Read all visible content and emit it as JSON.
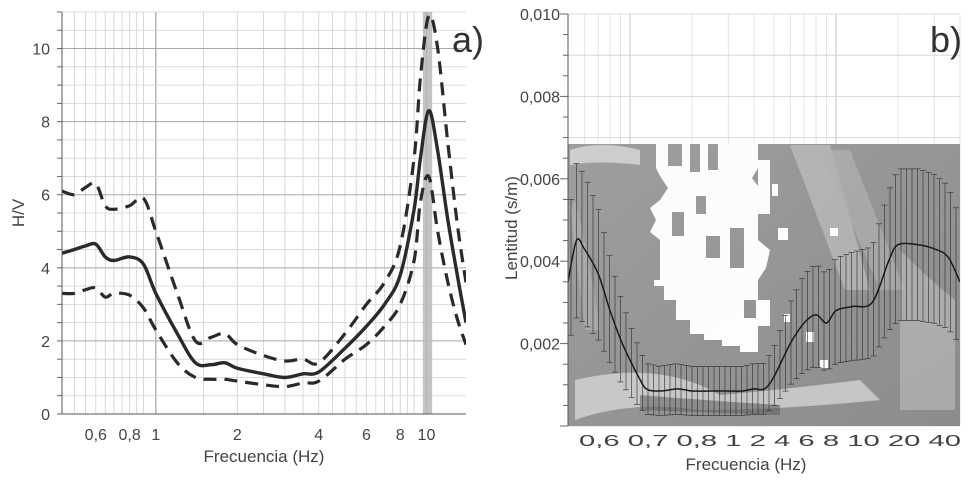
{
  "chart_data": [
    {
      "type": "line",
      "panel_label": "a)",
      "xlabel": "Frecuencia (Hz)",
      "ylabel": "H/V",
      "xscale": "log",
      "xlim": [
        0.45,
        14
      ],
      "ylim": [
        0,
        11
      ],
      "grid": true,
      "xticks": [
        {
          "v": 0.6,
          "label": "0,6"
        },
        {
          "v": 0.8,
          "label": "0,8"
        },
        {
          "v": 1,
          "label": "1"
        },
        {
          "v": 2,
          "label": "2"
        },
        {
          "v": 4,
          "label": "4"
        },
        {
          "v": 6,
          "label": "6"
        },
        {
          "v": 8,
          "label": "8"
        },
        {
          "v": 10,
          "label": "10"
        }
      ],
      "yticks": [
        {
          "v": 0,
          "label": "0"
        },
        {
          "v": 2,
          "label": "2"
        },
        {
          "v": 4,
          "label": "4"
        },
        {
          "v": 6,
          "label": "6"
        },
        {
          "v": 8,
          "label": "8"
        },
        {
          "v": 10,
          "label": "10"
        }
      ],
      "shaded_band_x": [
        9.7,
        10.5
      ],
      "series": [
        {
          "style": "solid",
          "x": [
            0.45,
            0.5,
            0.55,
            0.6,
            0.65,
            0.7,
            0.8,
            0.9,
            1.0,
            1.2,
            1.4,
            1.6,
            1.8,
            2.0,
            2.5,
            3.0,
            3.5,
            4.0,
            5.0,
            6.0,
            7.0,
            8.0,
            9.0,
            9.5,
            10.2,
            11.0,
            12.0,
            13.0,
            14.0
          ],
          "y": [
            4.4,
            4.5,
            4.6,
            4.65,
            4.3,
            4.2,
            4.3,
            4.1,
            3.3,
            2.2,
            1.4,
            1.35,
            1.4,
            1.25,
            1.1,
            1.0,
            1.1,
            1.15,
            1.8,
            2.4,
            3.0,
            3.8,
            5.6,
            7.0,
            8.3,
            7.2,
            5.3,
            3.8,
            2.5
          ]
        },
        {
          "style": "dashed",
          "x": [
            0.45,
            0.5,
            0.55,
            0.6,
            0.65,
            0.7,
            0.8,
            0.9,
            1.0,
            1.2,
            1.4,
            1.6,
            1.8,
            2.0,
            2.5,
            3.0,
            3.5,
            4.0,
            5.0,
            6.0,
            7.0,
            8.0,
            9.0,
            9.5,
            10.2,
            11.0,
            12.0,
            13.0,
            14.0
          ],
          "y": [
            6.1,
            6.0,
            6.2,
            6.3,
            5.7,
            5.6,
            5.7,
            5.9,
            5.0,
            3.3,
            2.0,
            2.1,
            2.2,
            1.9,
            1.6,
            1.45,
            1.5,
            1.4,
            2.2,
            3.0,
            3.6,
            4.6,
            7.0,
            9.2,
            10.9,
            10.0,
            7.4,
            5.2,
            3.6
          ]
        },
        {
          "style": "dashed",
          "x": [
            0.45,
            0.5,
            0.55,
            0.6,
            0.65,
            0.7,
            0.8,
            0.9,
            1.0,
            1.2,
            1.4,
            1.6,
            1.8,
            2.0,
            2.5,
            3.0,
            3.5,
            4.0,
            5.0,
            6.0,
            7.0,
            8.0,
            9.0,
            9.5,
            10.2,
            11.0,
            12.0,
            13.0,
            14.0
          ],
          "y": [
            3.3,
            3.3,
            3.4,
            3.45,
            3.2,
            3.3,
            3.25,
            2.9,
            2.3,
            1.4,
            1.0,
            0.95,
            0.95,
            0.9,
            0.8,
            0.75,
            0.85,
            0.9,
            1.5,
            1.9,
            2.4,
            3.0,
            4.2,
            5.8,
            6.5,
            5.0,
            3.6,
            2.6,
            1.9
          ]
        }
      ]
    },
    {
      "type": "heatmap",
      "panel_label": "b)",
      "xlabel": "Frecuencia (Hz)",
      "ylabel": "Lentitud (s/m)",
      "xscale": "log",
      "xlim": [
        0.5,
        40
      ],
      "ylim": [
        0,
        0.01
      ],
      "xticks": [
        {
          "v": 0.6,
          "label": "0,6"
        },
        {
          "v": 0.7,
          "label": "0,7"
        },
        {
          "v": 0.8,
          "label": "0,8"
        },
        {
          "v": 1,
          "label": "1"
        },
        {
          "v": 2,
          "label": "2"
        },
        {
          "v": 4,
          "label": "4"
        },
        {
          "v": 6,
          "label": "6"
        },
        {
          "v": 8,
          "label": "8"
        },
        {
          "v": 10,
          "label": "10"
        },
        {
          "v": 20,
          "label": "20"
        },
        {
          "v": 40,
          "label": "40"
        }
      ],
      "xtick_text": "0,6 0,7 0,8 1 2 4 6 8 10 20 40",
      "yticks": [
        {
          "v": 0.002,
          "label": "0,002"
        },
        {
          "v": 0.004,
          "label": "0,004"
        },
        {
          "v": 0.006,
          "label": "0,006"
        },
        {
          "v": 0.008,
          "label": "0,008"
        },
        {
          "v": 0.01,
          "label": "0,010"
        }
      ],
      "dispersion_curve": {
        "x": [
          0.5,
          0.55,
          0.6,
          0.7,
          0.8,
          0.9,
          1.0,
          1.1,
          1.2,
          1.4,
          1.7,
          2.0,
          2.5,
          3.0,
          3.5,
          4.0,
          4.5,
          5.0,
          6.0,
          7.0,
          8.0,
          9.0,
          10.0,
          12.0,
          15.0,
          18.0,
          20.0,
          25.0,
          30.0,
          35.0,
          40.0
        ],
        "y": [
          0.0035,
          0.0045,
          0.0043,
          0.0037,
          0.0028,
          0.0021,
          0.0016,
          0.0012,
          0.0009,
          0.00085,
          0.0009,
          0.00085,
          0.00085,
          0.00085,
          0.00085,
          0.0009,
          0.0009,
          0.0012,
          0.002,
          0.0025,
          0.0027,
          0.0025,
          0.0028,
          0.0029,
          0.003,
          0.004,
          0.0044,
          0.0044,
          0.0043,
          0.0041,
          0.0035
        ]
      }
    }
  ]
}
